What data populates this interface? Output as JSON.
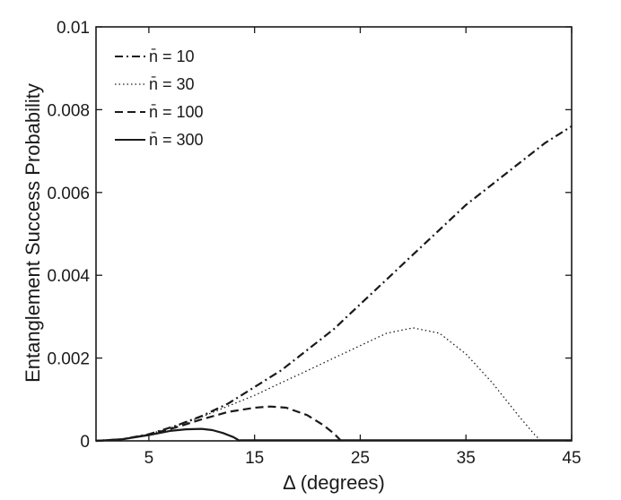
{
  "chart_data": {
    "type": "line",
    "title": "",
    "xlabel": "Δ (degrees)",
    "ylabel": "Entanglement Success Probability",
    "xlim": [
      0,
      45
    ],
    "ylim": [
      0,
      0.01
    ],
    "x_ticks": [
      5,
      15,
      25,
      35,
      45
    ],
    "x_tick_labels": [
      "5",
      "15",
      "25",
      "35",
      "45"
    ],
    "y_ticks": [
      0,
      0.002,
      0.004,
      0.006,
      0.008,
      0.01
    ],
    "y_tick_labels": [
      "0",
      "0.002",
      "0.004",
      "0.006",
      "0.008",
      "0.01"
    ],
    "grid": false,
    "legend_position": "top-left",
    "series": [
      {
        "name": "n̄ = 10",
        "style": "dashdot",
        "color": "#1a1a1a",
        "x": [
          0,
          2.5,
          5,
          7.5,
          10,
          12.5,
          15,
          17.5,
          20,
          22.5,
          25,
          27.5,
          30,
          32.5,
          35,
          37.5,
          40,
          42.5,
          45
        ],
        "y": [
          0,
          4e-05,
          0.00016,
          0.00036,
          0.0006,
          0.0009,
          0.0013,
          0.0017,
          0.0022,
          0.0027,
          0.0033,
          0.0039,
          0.0045,
          0.0051,
          0.0057,
          0.0062,
          0.0067,
          0.0072,
          0.0076
        ]
      },
      {
        "name": "n̄ = 30",
        "style": "dotted",
        "color": "#1a1a1a",
        "x": [
          0,
          2.5,
          5,
          7.5,
          10,
          12.5,
          15,
          17.5,
          20,
          22.5,
          25,
          27.5,
          30,
          32.5,
          35,
          37.5,
          40,
          41.5,
          42.1
        ],
        "y": [
          0,
          4e-05,
          0.00016,
          0.00035,
          0.00058,
          0.00084,
          0.0011,
          0.0014,
          0.0017,
          0.002,
          0.0023,
          0.0026,
          0.00273,
          0.0026,
          0.0021,
          0.0014,
          0.0006,
          0.00015,
          0
        ]
      },
      {
        "name": "n̄ = 100",
        "style": "dashed",
        "color": "#1a1a1a",
        "x": [
          0,
          2.5,
          5,
          7.5,
          10,
          12.5,
          15,
          16.5,
          18,
          20,
          21.5,
          22.5,
          23.2
        ],
        "y": [
          0,
          4e-05,
          0.00015,
          0.00032,
          0.00052,
          0.0007,
          0.0008,
          0.00083,
          0.0008,
          0.00062,
          0.00038,
          0.00018,
          0
        ]
      },
      {
        "name": "n̄ = 300",
        "style": "solid",
        "color": "#1a1a1a",
        "x": [
          0,
          2.5,
          5,
          7,
          8.5,
          10,
          11,
          12,
          13,
          13.6
        ],
        "y": [
          0,
          4e-05,
          0.00014,
          0.00024,
          0.00028,
          0.00029,
          0.00026,
          0.00019,
          9e-05,
          0
        ]
      }
    ]
  }
}
